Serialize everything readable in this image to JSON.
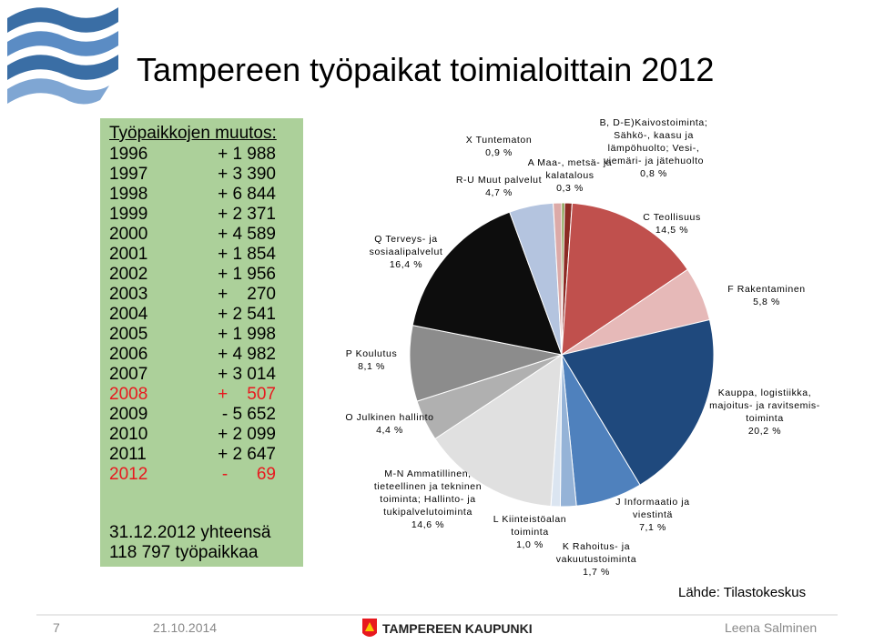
{
  "title": "Tampereen työpaikat toimialoittain 2012",
  "change_box": {
    "heading": "Työpaikkojen muutos:",
    "rows": [
      {
        "year": "1996",
        "change": "+ 1 988",
        "color": "#000000"
      },
      {
        "year": "1997",
        "change": "+ 3 390",
        "color": "#000000"
      },
      {
        "year": "1998",
        "change": "+ 6 844",
        "color": "#000000"
      },
      {
        "year": "1999",
        "change": "+ 2 371",
        "color": "#000000"
      },
      {
        "year": "2000",
        "change": "+ 4 589",
        "color": "#000000"
      },
      {
        "year": "2001",
        "change": "+ 1 854",
        "color": "#000000"
      },
      {
        "year": "2002",
        "change": "+ 1 956",
        "color": "#000000"
      },
      {
        "year": "2003",
        "change": "+    270",
        "color": "#000000"
      },
      {
        "year": "2004",
        "change": "+ 2 541",
        "color": "#000000"
      },
      {
        "year": "2005",
        "change": "+ 1 998",
        "color": "#000000"
      },
      {
        "year": "2006",
        "change": "+ 4 982",
        "color": "#000000"
      },
      {
        "year": "2007",
        "change": "+ 3 014",
        "color": "#000000"
      },
      {
        "year": "2008",
        "change": "+    507",
        "color": "#e8191f"
      },
      {
        "year": "2009",
        "change": "- 5 652",
        "color": "#000000"
      },
      {
        "year": "2010",
        "change": "+ 2 099",
        "color": "#000000"
      },
      {
        "year": "2011",
        "change": "+ 2 647",
        "color": "#000000"
      },
      {
        "year": "2012",
        "change": "-      69",
        "color": "#e8191f"
      }
    ],
    "total": [
      "31.12.2012 yhteensä",
      "118 797 työpaikkaa"
    ]
  },
  "chart_data": {
    "type": "pie",
    "categories": [
      "A Maa-, metsä- ja kalatalous",
      "B, D-E)Kaivostoiminta; Sähkö-, kaasu ja lämpöhuolto; Vesi-, viemäri- ja jätehuolto",
      "C Teollisuus",
      "F Rakentaminen",
      "Kauppa, logistiikka, majoitus- ja ravitsemis- toiminta",
      "J Informaatio ja viestintä",
      "K Rahoitus- ja vakuutustoiminta",
      "L Kiinteistöalan toiminta",
      "M-N Ammatillinen, tieteellinen ja tekninen toiminta; Hallinto- ja tukipalvelutoiminta",
      "O Julkinen hallinto",
      "P Koulutus",
      "Q Terveys- ja sosiaalipalvelut",
      "R-U Muut palvelut",
      "X Tuntematon"
    ],
    "values": [
      0.3,
      0.8,
      14.5,
      5.8,
      20.2,
      7.1,
      1.7,
      1.0,
      14.6,
      4.4,
      8.1,
      16.4,
      4.7,
      0.9
    ],
    "value_labels": [
      "0,3 %",
      "0,8 %",
      "14,5 %",
      "5,8 %",
      "20,2 %",
      "7,1 %",
      "1,7 %",
      "1,0 %",
      "14,6 %",
      "4,4 %",
      "8,1 %",
      "16,4 %",
      "4,7 %",
      "0,9 %"
    ],
    "colors": [
      "#77933c",
      "#8c2a24",
      "#c0504d",
      "#e6b9b8",
      "#1f497d",
      "#4f81bd",
      "#95b3d7",
      "#dbe5f1",
      "#e0e0e0",
      "#b0b0b0",
      "#8c8c8c",
      "#0d0d0d",
      "#b4c4df",
      "#dcaaa8"
    ]
  },
  "source": "Lähde: Tilastokeskus",
  "footer": {
    "page": "7",
    "date": "21.10.2014",
    "logo": "TAMPEREEN KAUPUNKI",
    "author": "Leena Salminen"
  }
}
